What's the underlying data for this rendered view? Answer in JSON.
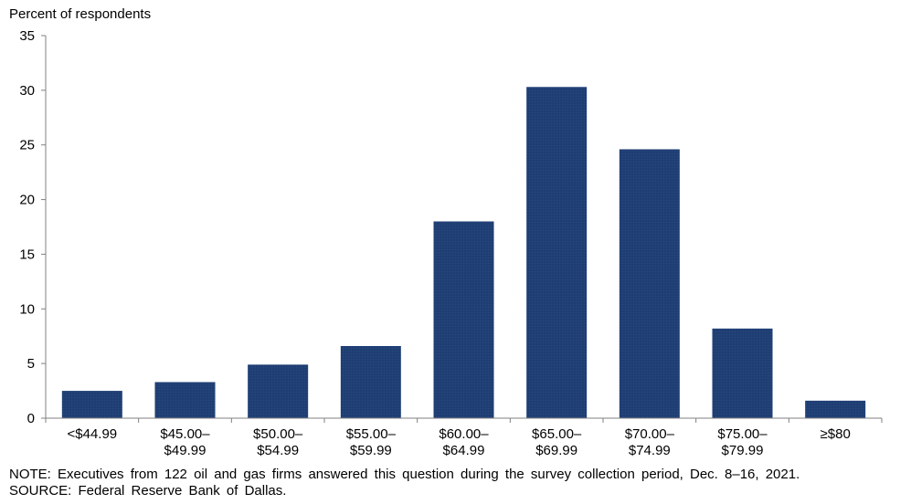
{
  "chart_data": {
    "type": "bar",
    "ylabel": "Percent of respondents",
    "categories": [
      "<$44.99",
      "$45.00–\n$49.99",
      "$50.00–\n$54.99",
      "$55.00–\n$59.99",
      "$60.00–\n$64.99",
      "$65.00–\n$69.99",
      "$70.00–\n$74.99",
      "$75.00–\n$79.99",
      "≥$80"
    ],
    "values": [
      2.5,
      3.3,
      4.9,
      6.6,
      18.0,
      30.3,
      24.6,
      8.2,
      1.6
    ],
    "ylim": [
      0,
      35
    ],
    "yticks": [
      0,
      5,
      10,
      15,
      20,
      25,
      30,
      35
    ],
    "grid": false,
    "bar_color": "#1f3e73"
  },
  "footer": {
    "note": "NOTE: Executives from 122 oil and gas firms answered this question during the survey collection period, Dec. 8–16, 2021.",
    "source": "SOURCE: Federal Reserve Bank of Dallas."
  }
}
